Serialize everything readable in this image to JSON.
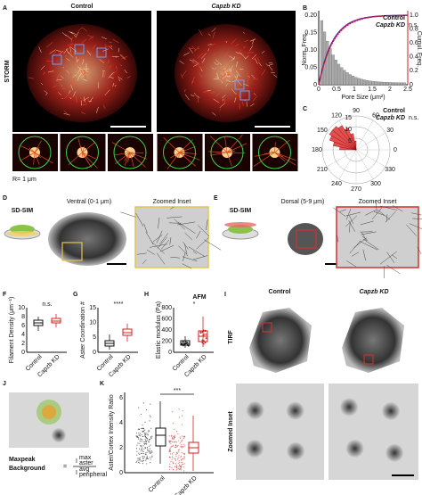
{
  "panel_letters": [
    "A",
    "B",
    "C",
    "D",
    "E",
    "F",
    "G",
    "H",
    "I",
    "J",
    "K"
  ],
  "a": {
    "control": "Control",
    "kd": "Capzb KD",
    "side": "STORM",
    "insets": [
      {
        "num": "1",
        "n": "n=4"
      },
      {
        "num": "2",
        "n": "n=5"
      },
      {
        "num": "3",
        "n": "n=5"
      },
      {
        "num": "1",
        "n": "n=8"
      },
      {
        "num": "2",
        "n": "n=8"
      },
      {
        "num": "3",
        "n": "n=8"
      }
    ],
    "radius": "R= 1 μm"
  },
  "b": {
    "legend": [
      "Control",
      "Capzb KD"
    ],
    "ns": "n.s.",
    "ylabel": "Norm. Freq.",
    "y2label": "Cumul. Freq.",
    "xlabel": "Pore Size (μm²)",
    "xticks": [
      "0",
      "0.5",
      "1",
      "1.5",
      "2",
      "2.5"
    ],
    "yticks": [
      "0",
      "0.05",
      "0.10",
      "0.15",
      "0.20"
    ],
    "y2ticks": [
      "0",
      "0.2",
      "0.4",
      "0.6",
      "0.8",
      "1.0"
    ]
  },
  "c": {
    "legend": [
      "Control",
      "Capzb KD"
    ],
    "ns": "n.s.",
    "angles": [
      "0",
      "30",
      "60",
      "90",
      "120",
      "150",
      "180",
      "210",
      "240",
      "270",
      "300",
      "330"
    ],
    "radii": [
      "5",
      "10",
      "15"
    ]
  },
  "d": {
    "method": "SD-SIM",
    "title": "Ventral (0-1 μm)",
    "inset": "Zoomed Inset"
  },
  "e": {
    "method": "SD-SIM",
    "title": "Dorsal (5-9 μm)",
    "inset": "Zoomed Inset"
  },
  "f": {
    "ylabel": "Filament Density (μm⁻¹)",
    "yticks": [
      "0",
      "2",
      "4",
      "6",
      "8",
      "10"
    ],
    "sig": "n.s.",
    "groups": [
      "Control",
      "Capzb KD"
    ]
  },
  "g": {
    "ylabel": "Aster Coordination #",
    "yticks": [
      "0",
      "5",
      "10",
      "15"
    ],
    "sig": "****",
    "groups": [
      "Control",
      "Capzb KD"
    ]
  },
  "h": {
    "title": "AFM",
    "ylabel": "Elastic modulus (Pa)",
    "yticks": [
      "0",
      "200",
      "400",
      "600",
      "800"
    ],
    "sig": "*",
    "groups": [
      "Control",
      "Capzb KD"
    ]
  },
  "i": {
    "control": "Control",
    "kd": "Capzb KD",
    "side": "TIRF",
    "inset_side": "Zoomed Inset"
  },
  "j": {
    "max": "Maxpeak",
    "bg": "Background",
    "eq": "=",
    "num": "I",
    "num_sup": "max",
    "num_sub": "aster",
    "den": "I",
    "den_sup": "avg",
    "den_sub": "peripheral"
  },
  "k": {
    "ylabel": "Aster/Cortex Intensity Ratio",
    "yticks": [
      "0",
      "2",
      "4",
      "6"
    ],
    "sig": "***",
    "groups": [
      "Control",
      "Capzb KD"
    ]
  }
}
